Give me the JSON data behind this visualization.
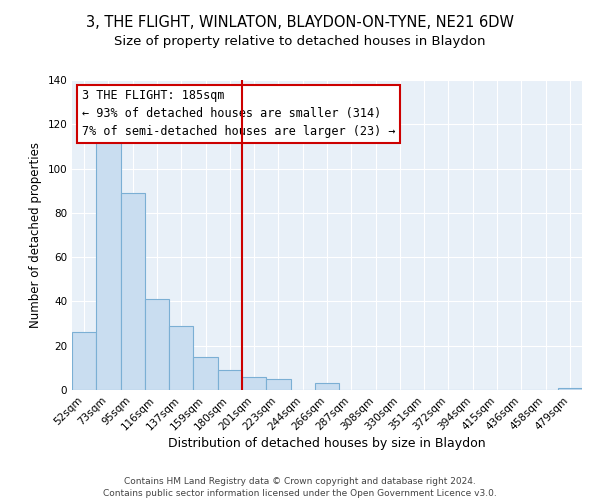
{
  "title": "3, THE FLIGHT, WINLATON, BLAYDON-ON-TYNE, NE21 6DW",
  "subtitle": "Size of property relative to detached houses in Blaydon",
  "xlabel": "Distribution of detached houses by size in Blaydon",
  "ylabel": "Number of detached properties",
  "bar_labels": [
    "52sqm",
    "73sqm",
    "95sqm",
    "116sqm",
    "137sqm",
    "159sqm",
    "180sqm",
    "201sqm",
    "223sqm",
    "244sqm",
    "266sqm",
    "287sqm",
    "308sqm",
    "330sqm",
    "351sqm",
    "372sqm",
    "394sqm",
    "415sqm",
    "436sqm",
    "458sqm",
    "479sqm"
  ],
  "bar_values": [
    26,
    116,
    89,
    41,
    29,
    15,
    9,
    6,
    5,
    0,
    3,
    0,
    0,
    0,
    0,
    0,
    0,
    0,
    0,
    0,
    1
  ],
  "bar_color": "#c9ddf0",
  "bar_edge_color": "#7bafd4",
  "vline_color": "#cc0000",
  "vline_x_idx": 6,
  "annotation_text_line1": "3 THE FLIGHT: 185sqm",
  "annotation_text_line2": "← 93% of detached houses are smaller (314)",
  "annotation_text_line3": "7% of semi-detached houses are larger (23) →",
  "ylim": [
    0,
    140
  ],
  "yticks": [
    0,
    20,
    40,
    60,
    80,
    100,
    120,
    140
  ],
  "footer_line1": "Contains HM Land Registry data © Crown copyright and database right 2024.",
  "footer_line2": "Contains public sector information licensed under the Open Government Licence v3.0.",
  "title_fontsize": 10.5,
  "subtitle_fontsize": 9.5,
  "xlabel_fontsize": 9,
  "ylabel_fontsize": 8.5,
  "tick_fontsize": 7.5,
  "annotation_fontsize": 8.5,
  "footer_fontsize": 6.5,
  "bg_color": "#e8f0f8"
}
